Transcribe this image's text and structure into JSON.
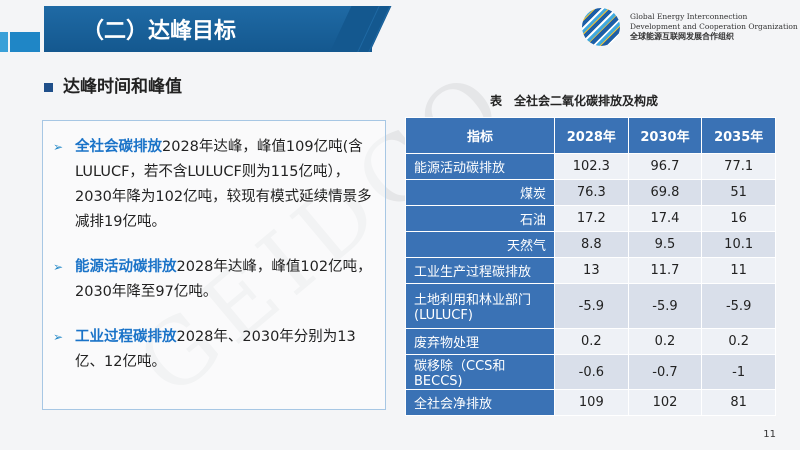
{
  "header": {
    "title": "（二）达峰目标"
  },
  "org": {
    "line1": "Global Energy Interconnection",
    "line2": "Development and Cooperation Organization",
    "cn": "全球能源互联网发展合作组织",
    "watermark": "GEIDCO"
  },
  "section": {
    "title": "达峰时间和峰值"
  },
  "bullets": [
    {
      "highlight": "全社会碳排放",
      "text": "2028年达峰，峰值109亿吨(含LULUCF，若不含LULUCF则为115亿吨），2030年降为102亿吨，较现有模式延续情景多减排19亿吨。"
    },
    {
      "highlight": "能源活动碳排放",
      "text": "2028年达峰，峰值102亿吨，2030年降至97亿吨。"
    },
    {
      "highlight": "工业过程碳排放",
      "text": "2028年、2030年分别为13亿、12亿吨。"
    }
  ],
  "table": {
    "caption": "表　全社会二氧化碳排放及构成",
    "headers": [
      "指标",
      "2028年",
      "2030年",
      "2035年"
    ],
    "rows": [
      {
        "label": "能源活动碳排放",
        "indent": false,
        "values": [
          "102.3",
          "96.7",
          "77.1"
        ]
      },
      {
        "label": "煤炭",
        "indent": true,
        "values": [
          "76.3",
          "69.8",
          "51"
        ]
      },
      {
        "label": "石油",
        "indent": true,
        "values": [
          "17.2",
          "17.4",
          "16"
        ]
      },
      {
        "label": "天然气",
        "indent": true,
        "values": [
          "8.8",
          "9.5",
          "10.1"
        ]
      },
      {
        "label": "工业生产过程碳排放",
        "indent": false,
        "values": [
          "13",
          "11.7",
          "11"
        ]
      },
      {
        "label": "土地利用和林业部门(LULUCF)",
        "indent": false,
        "values": [
          "-5.9",
          "-5.9",
          "-5.9"
        ]
      },
      {
        "label": "废弃物处理",
        "indent": false,
        "values": [
          "0.2",
          "0.2",
          "0.2"
        ]
      },
      {
        "label": "碳移除（CCS和BECCS)",
        "indent": false,
        "values": [
          "-0.6",
          "-0.7",
          "-1"
        ]
      },
      {
        "label": "全社会净排放",
        "indent": false,
        "values": [
          "109",
          "102",
          "81"
        ]
      }
    ]
  },
  "page_number": "11"
}
